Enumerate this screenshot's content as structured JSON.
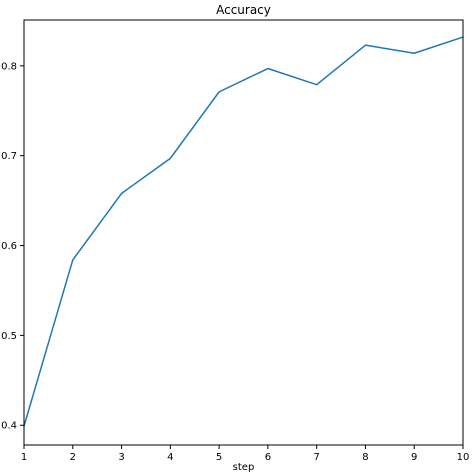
{
  "chart_data": {
    "type": "line",
    "title": "Accuracy",
    "xlabel": "step",
    "ylabel": "",
    "x": [
      1,
      2,
      3,
      4,
      5,
      6,
      7,
      8,
      9,
      10
    ],
    "series": [
      {
        "values": [
          0.399,
          0.584,
          0.658,
          0.697,
          0.771,
          0.797,
          0.779,
          0.823,
          0.814,
          0.832
        ],
        "color": "#1f77b4"
      }
    ],
    "xlim": [
      1,
      10
    ],
    "ylim": [
      0.378,
      0.851
    ],
    "xticks": [
      1,
      2,
      3,
      4,
      5,
      6,
      7,
      8,
      9,
      10
    ],
    "yticks": [
      0.4,
      0.5,
      0.6,
      0.7,
      0.8
    ],
    "grid": false
  }
}
